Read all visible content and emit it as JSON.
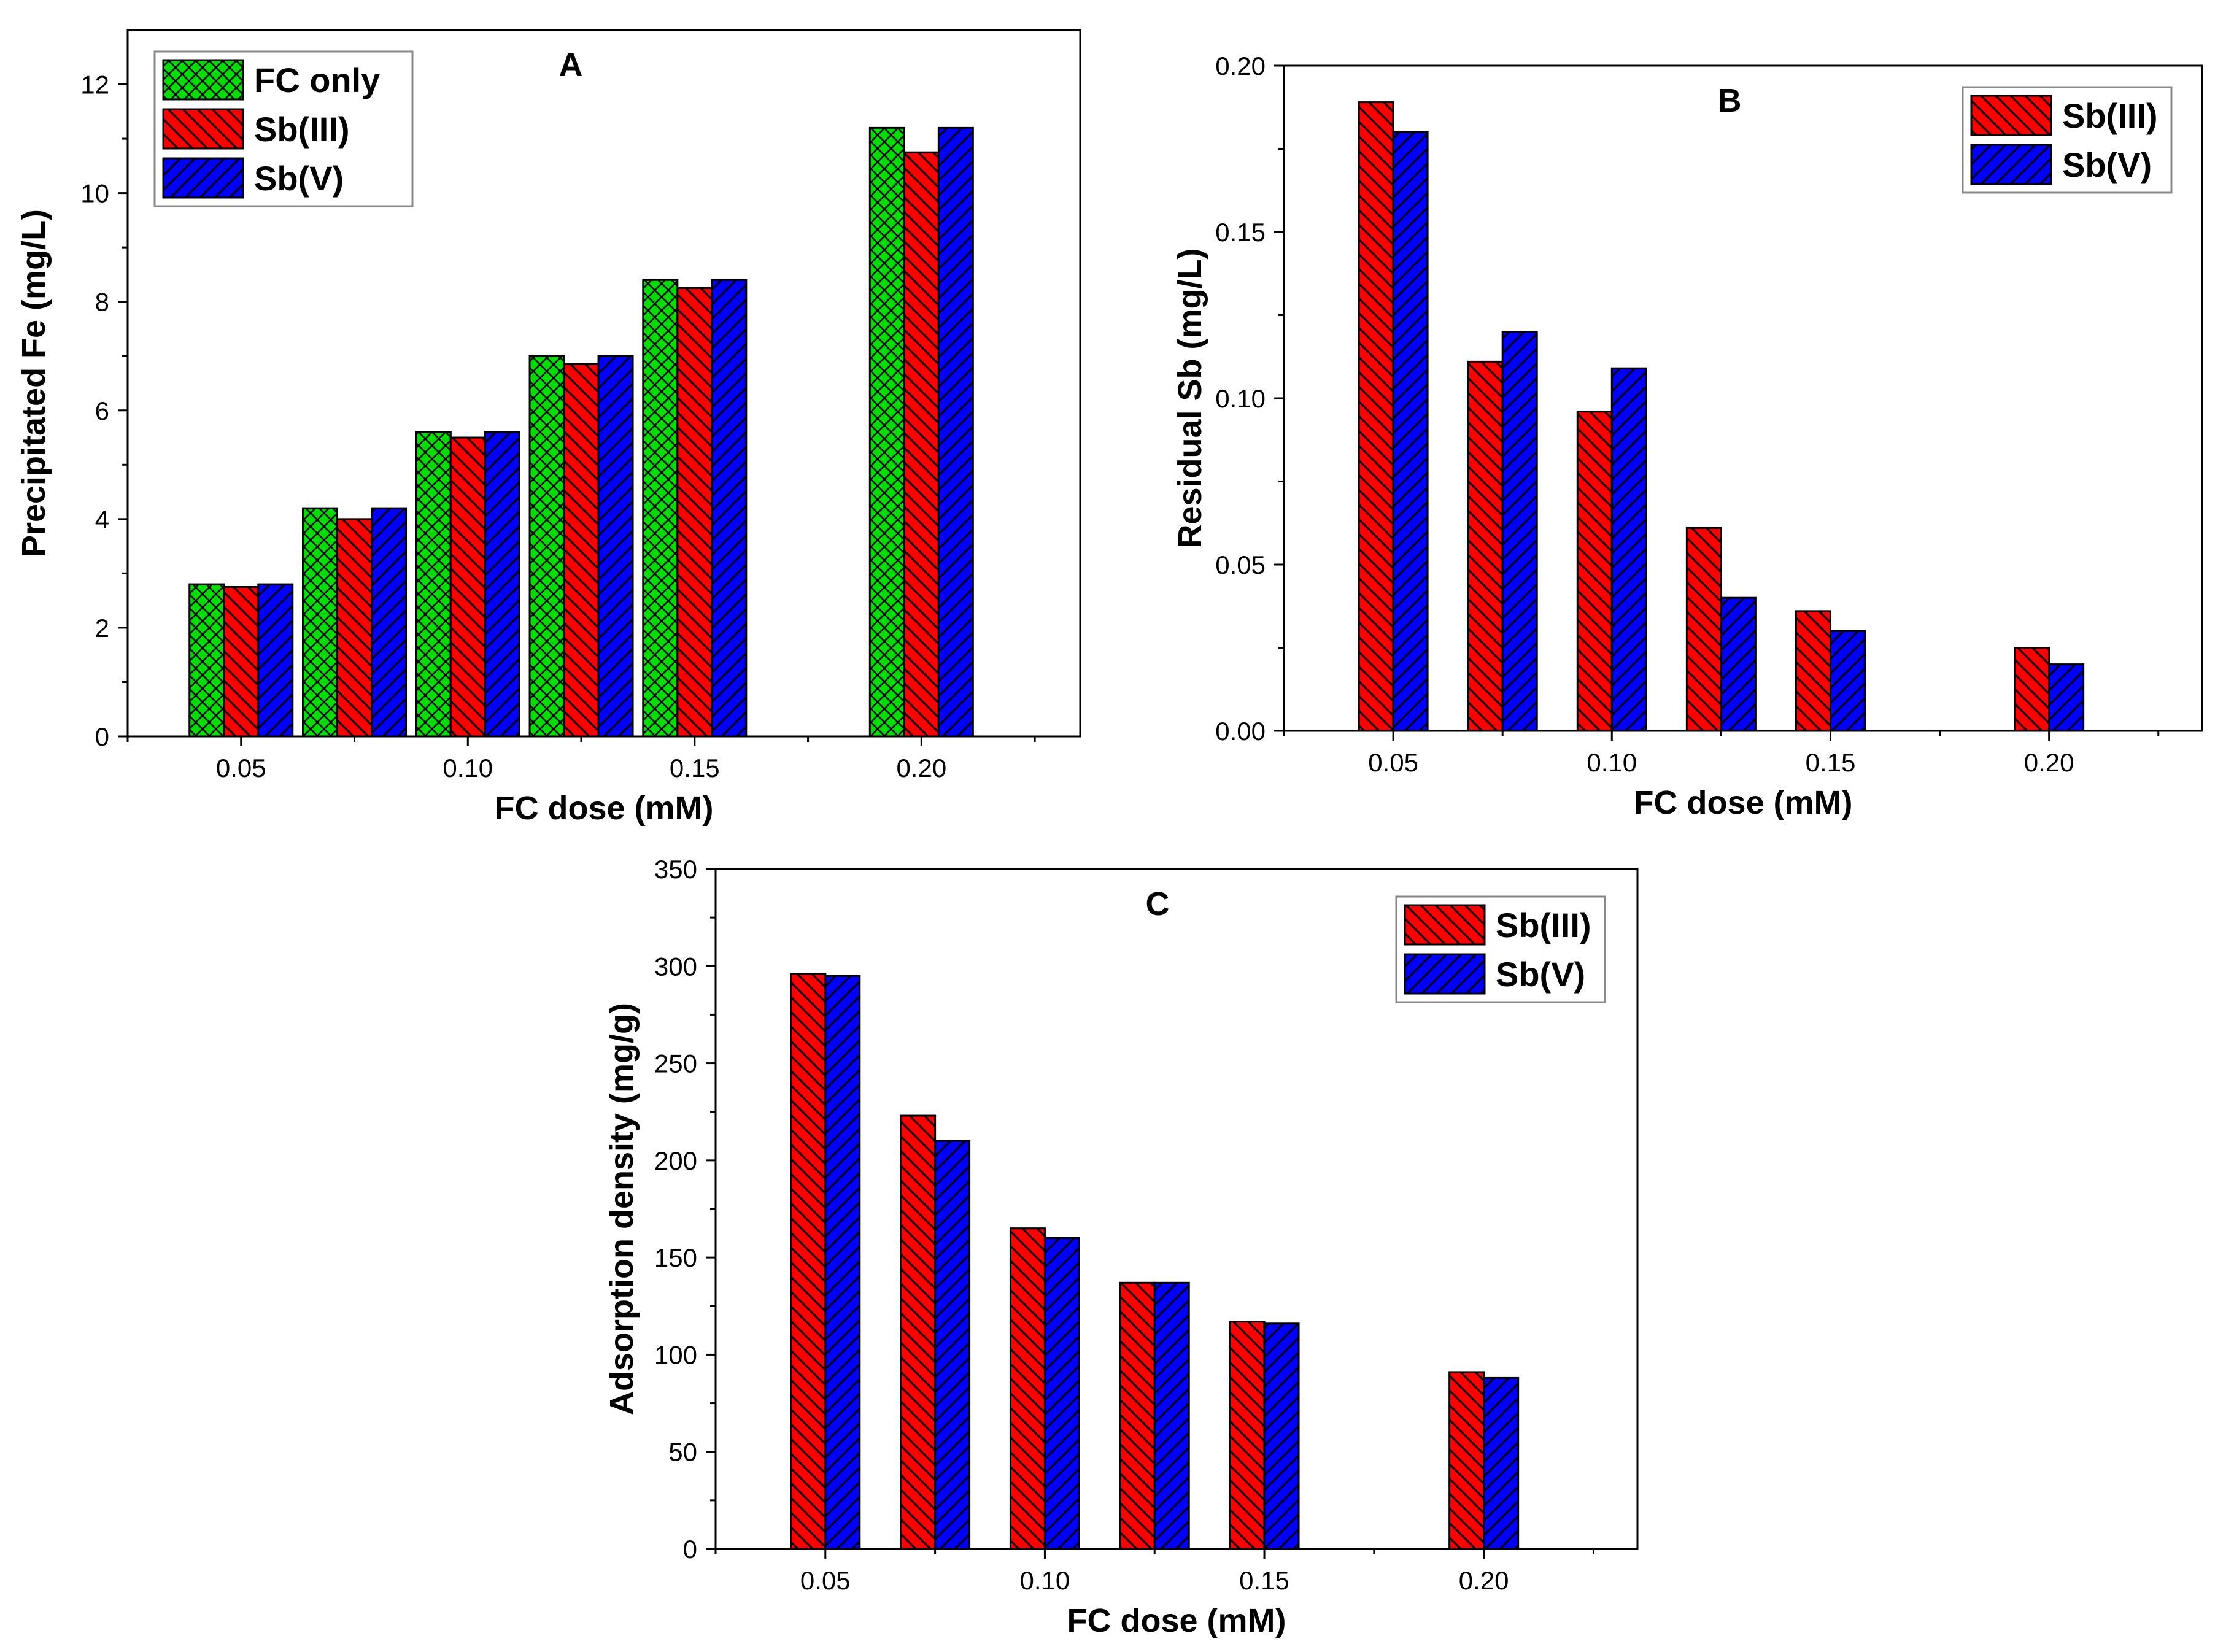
{
  "chart_data": [
    {
      "id": "A",
      "type": "bar",
      "title": "A",
      "xlabel": "FC dose (mM)",
      "ylabel": "Precipitated Fe (mg/L)",
      "ylim": [
        0,
        13
      ],
      "yticks": [
        0,
        2,
        4,
        6,
        8,
        10,
        12
      ],
      "ytick_labels": [
        "0",
        "2",
        "4",
        "6",
        "8",
        "10",
        "12"
      ],
      "xlim": [
        0.025,
        0.235
      ],
      "x_tick_values": [
        0.05,
        0.1,
        0.15,
        0.2
      ],
      "x_tick_labels": [
        "0.05",
        "0.10",
        "0.15",
        "0.20"
      ],
      "x": [
        0.05,
        0.075,
        0.1,
        0.125,
        0.15,
        0.2
      ],
      "series": [
        {
          "name": "FC only",
          "color": "#00dd00",
          "pattern": "crosshatch",
          "values": [
            2.8,
            4.2,
            5.6,
            7.0,
            8.4,
            11.2
          ]
        },
        {
          "name": "Sb(III)",
          "color": "#ff0000",
          "pattern": "hatch-down",
          "values": [
            2.75,
            4.0,
            5.5,
            6.85,
            8.25,
            10.75
          ]
        },
        {
          "name": "Sb(V)",
          "color": "#0000ff",
          "pattern": "hatch-up",
          "values": [
            2.8,
            4.2,
            5.6,
            7.0,
            8.4,
            11.2
          ]
        }
      ],
      "legend_position": "top-left"
    },
    {
      "id": "B",
      "type": "bar",
      "title": "B",
      "xlabel": "FC dose (mM)",
      "ylabel": "Residual Sb (mg/L)",
      "ylim": [
        0,
        0.2
      ],
      "yticks": [
        0,
        0.05,
        0.1,
        0.15,
        0.2
      ],
      "ytick_labels": [
        "0.00",
        "0.05",
        "0.10",
        "0.15",
        "0.20"
      ],
      "xlim": [
        0.025,
        0.235
      ],
      "x_tick_values": [
        0.05,
        0.1,
        0.15,
        0.2
      ],
      "x_tick_labels": [
        "0.05",
        "0.10",
        "0.15",
        "0.20"
      ],
      "x": [
        0.05,
        0.075,
        0.1,
        0.125,
        0.15,
        0.2
      ],
      "series": [
        {
          "name": "Sb(III)",
          "color": "#ff0000",
          "pattern": "hatch-down",
          "values": [
            0.189,
            0.111,
            0.096,
            0.061,
            0.036,
            0.025
          ]
        },
        {
          "name": "Sb(V)",
          "color": "#0000ff",
          "pattern": "hatch-up",
          "values": [
            0.18,
            0.12,
            0.109,
            0.04,
            0.03,
            0.02
          ]
        }
      ],
      "legend_position": "top-right"
    },
    {
      "id": "C",
      "type": "bar",
      "title": "C",
      "xlabel": "FC dose (mM)",
      "ylabel": "Adsorption density (mg/g)",
      "ylim": [
        0,
        350
      ],
      "yticks": [
        0,
        50,
        100,
        150,
        200,
        250,
        300,
        350
      ],
      "ytick_labels": [
        "0",
        "50",
        "100",
        "150",
        "200",
        "250",
        "300",
        "350"
      ],
      "xlim": [
        0.025,
        0.235
      ],
      "x_tick_values": [
        0.05,
        0.1,
        0.15,
        0.2
      ],
      "x_tick_labels": [
        "0.05",
        "0.10",
        "0.15",
        "0.20"
      ],
      "x": [
        0.05,
        0.075,
        0.1,
        0.125,
        0.15,
        0.2
      ],
      "series": [
        {
          "name": "Sb(III)",
          "color": "#ff0000",
          "pattern": "hatch-down",
          "values": [
            296,
            223,
            165,
            137,
            117,
            91
          ]
        },
        {
          "name": "Sb(V)",
          "color": "#0000ff",
          "pattern": "hatch-up",
          "values": [
            295,
            210,
            160,
            137,
            116,
            88
          ]
        }
      ],
      "legend_position": "top-right"
    }
  ]
}
